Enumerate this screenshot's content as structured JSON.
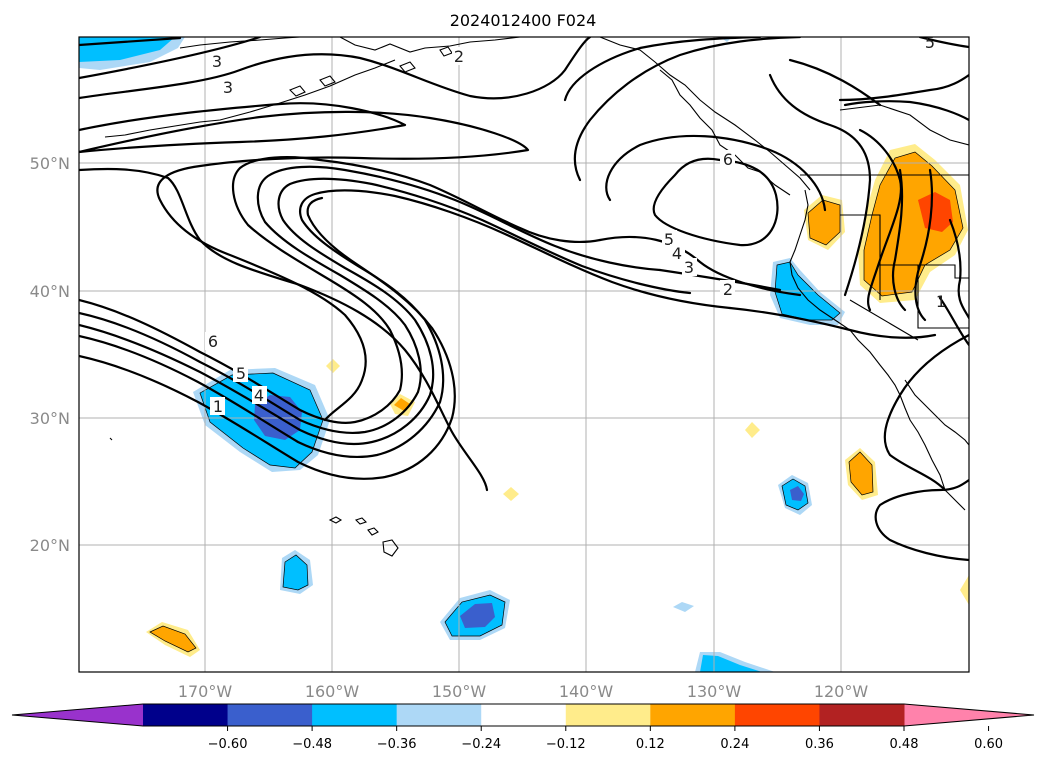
{
  "title": "2024012400 F024",
  "longitude_ticks": [
    "170°W",
    "160°W",
    "150°W",
    "140°W",
    "130°W",
    "120°W"
  ],
  "latitude_ticks": [
    "50°N",
    "40°N",
    "30°N",
    "20°N"
  ],
  "colorbar": {
    "tick_labels": [
      "−0.60",
      "−0.48",
      "−0.36",
      "−0.24",
      "−0.12",
      "0.12",
      "0.24",
      "0.36",
      "0.48",
      "0.60"
    ],
    "colors": [
      "#9932cc",
      "#00008b",
      "#3a5fcd",
      "#00bfff",
      "#add8f6",
      "#ffffff",
      "#ffec8b",
      "#ffa500",
      "#ff4500",
      "#b22222",
      "#ff82ab"
    ],
    "extend": "both"
  },
  "contour_labels": [
    "3",
    "3",
    "2",
    "6",
    "5",
    "4",
    "3",
    "2",
    "6",
    "5",
    "4",
    "1",
    "1",
    "5"
  ]
}
